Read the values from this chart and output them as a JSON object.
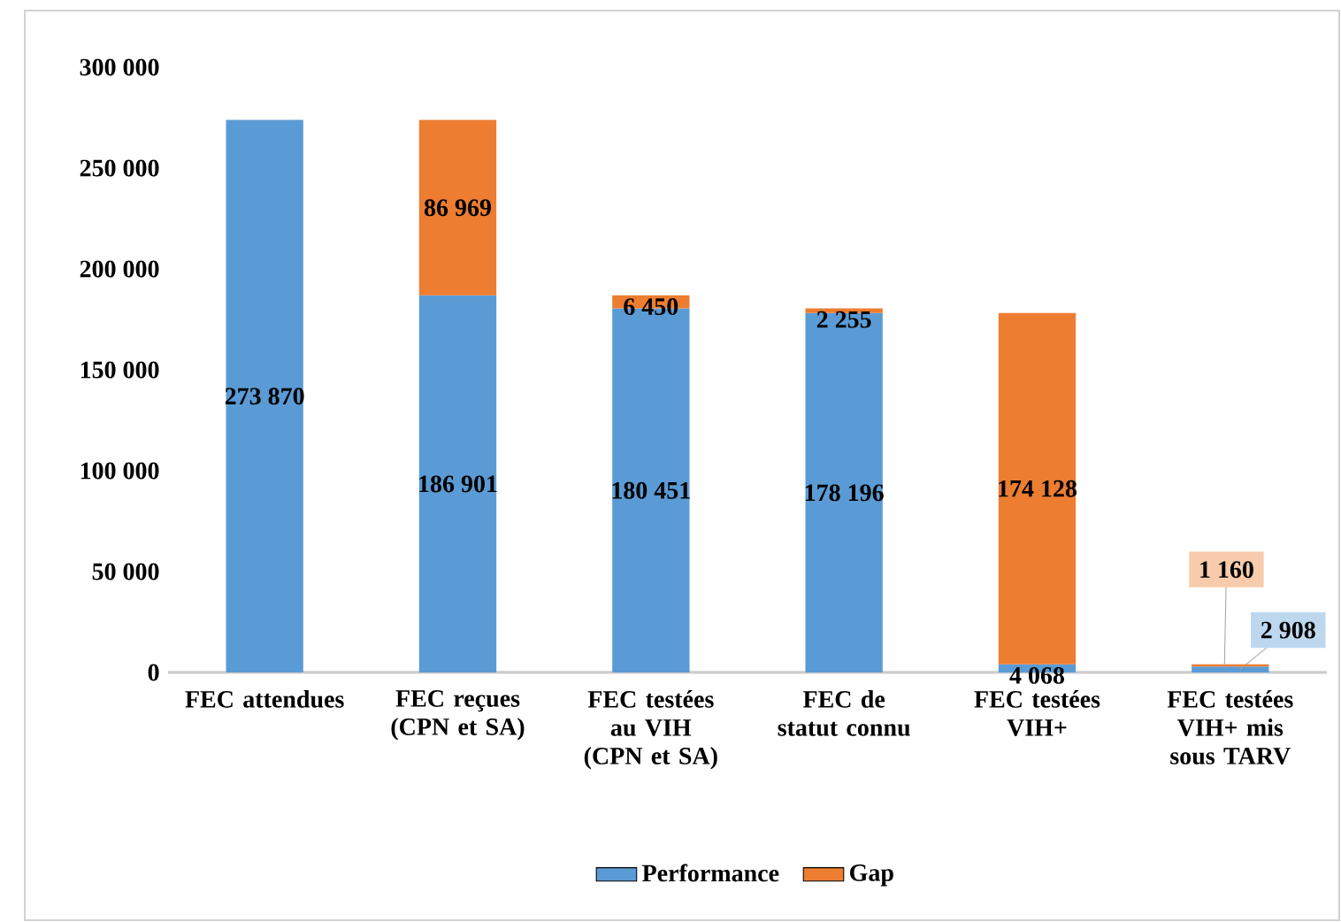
{
  "chart_data": {
    "type": "bar",
    "stacked": true,
    "categories": [
      "FEC attendues",
      "FEC reçues (CPN et SA)",
      "FEC testées au VIH (CPN et SA)",
      "FEC de statut connu",
      "FEC testées VIH+",
      "FEC testées VIH+ mis sous TARV"
    ],
    "series": [
      {
        "name": "Performance",
        "color": "#5b9bd5",
        "values": [
          273870,
          186901,
          180451,
          178196,
          4068,
          2908
        ],
        "value_labels": [
          "273 870",
          "186 901",
          "180 451",
          "178 196",
          "4 068",
          "2 908"
        ]
      },
      {
        "name": "Gap",
        "color": "#ed7d31",
        "values": [
          null,
          86969,
          6450,
          2255,
          174128,
          1160
        ],
        "value_labels": [
          null,
          "86 969",
          "6 450",
          "2 255",
          "174 128",
          "1 160"
        ]
      }
    ],
    "ylim": [
      0,
      300000
    ],
    "yticks": [
      0,
      {
        "value": 50000,
        "label": "50 000"
      },
      {
        "value": 100000,
        "label": "100 000"
      },
      {
        "value": 150000,
        "label": "150 000"
      },
      {
        "value": 200000,
        "label": "200 000"
      },
      {
        "value": 250000,
        "label": "250 000"
      },
      {
        "value": 300000,
        "label": "300 000"
      }
    ],
    "legend": "bottom",
    "grid": false
  }
}
